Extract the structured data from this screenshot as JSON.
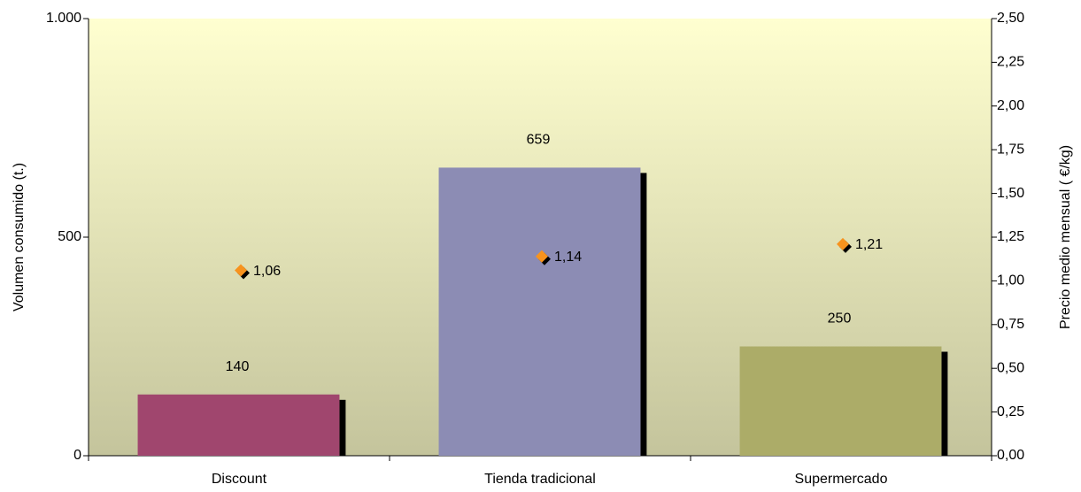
{
  "chart_data": {
    "type": "bar",
    "categories": [
      "Discount",
      "Tienda tradicional",
      "Supermercado"
    ],
    "series": [
      {
        "type": "bar",
        "values": [
          140,
          659,
          250
        ],
        "colors": [
          "#a0466e",
          "#8c8cb4",
          "#acac68"
        ]
      },
      {
        "type": "scatter",
        "axis": "y2",
        "values": [
          1.06,
          1.14,
          1.21
        ],
        "value_labels": [
          "1,06",
          "1,14",
          "1,21"
        ],
        "color": "#f7931e"
      }
    ],
    "ylabel": "Volumen consumido (t.)",
    "y2label": "Precio medio mensual ( €/kg)",
    "ylim": [
      0,
      1000
    ],
    "yticks": [
      0,
      500,
      {
        "value": 1000,
        "label": "1.000"
      }
    ],
    "y2lim": [
      0,
      2.5
    ],
    "y2ticks": [
      {
        "value": 0,
        "label": "0,00"
      },
      {
        "value": 0.25,
        "label": "0,25"
      },
      {
        "value": 0.5,
        "label": "0,50"
      },
      {
        "value": 0.75,
        "label": "0,75"
      },
      {
        "value": 1,
        "label": "1,00"
      },
      {
        "value": 1.25,
        "label": "1,25"
      },
      {
        "value": 1.5,
        "label": "1,50"
      },
      {
        "value": 1.75,
        "label": "1,75"
      },
      {
        "value": 2,
        "label": "2,00"
      },
      {
        "value": 2.25,
        "label": "2,25"
      },
      {
        "value": 2.5,
        "label": "2,50"
      }
    ]
  }
}
